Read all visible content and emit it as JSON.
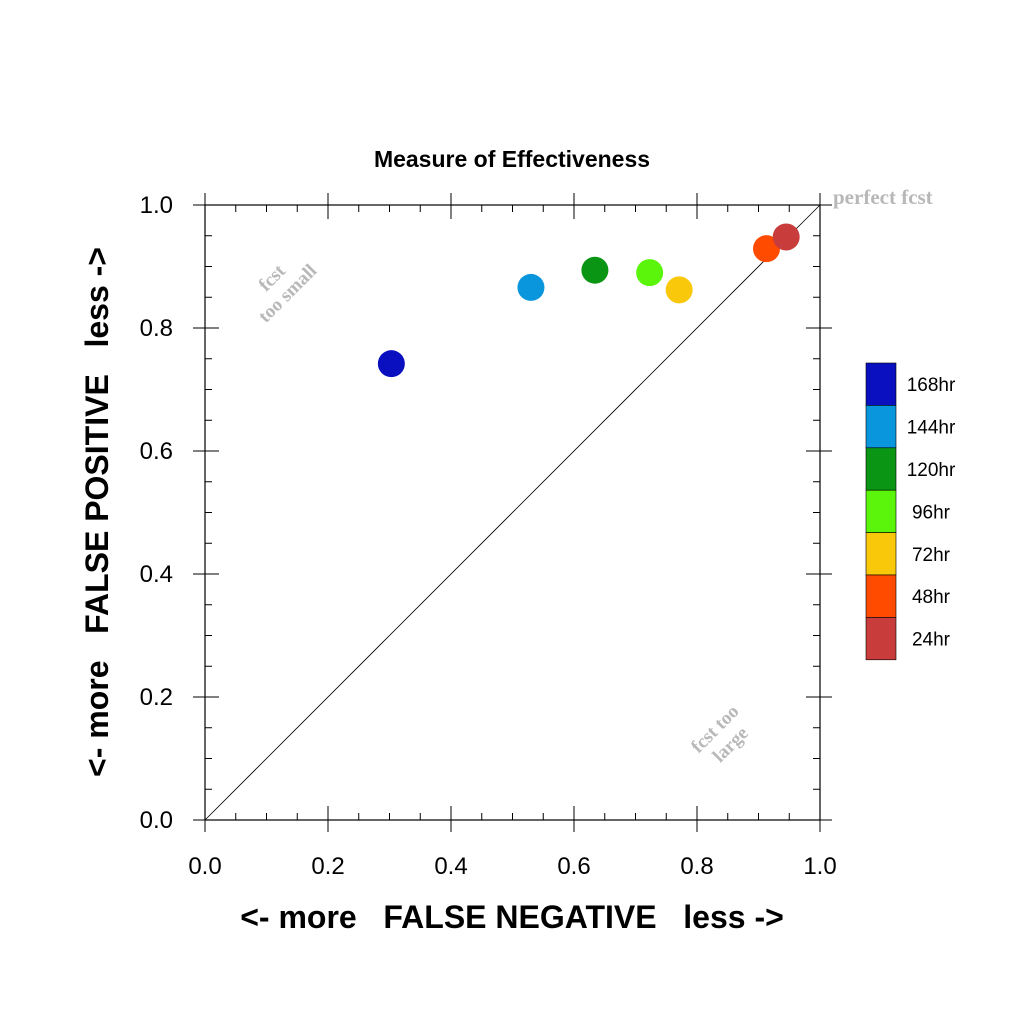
{
  "chart_data": {
    "type": "scatter",
    "title": "Measure of Effectiveness",
    "xlabel": "<- more   FALSE NEGATIVE   less ->",
    "ylabel": "<- more   FALSE POSITIVE   less ->",
    "xlim": [
      0.0,
      1.0
    ],
    "ylim": [
      0.0,
      1.0
    ],
    "xticks": [
      "0.0",
      "0.2",
      "0.4",
      "0.6",
      "0.8",
      "1.0"
    ],
    "yticks": [
      "0.0",
      "0.2",
      "0.4",
      "0.6",
      "0.8",
      "1.0"
    ],
    "grid": false,
    "diagonal_line": true,
    "annotations": {
      "perfect": "perfect fcst",
      "too_small": [
        "fcst",
        "too small"
      ],
      "too_large": [
        "fcst too",
        "large"
      ]
    },
    "legend_position": "right",
    "series": [
      {
        "name": "168hr",
        "color": "#0a10c0",
        "x": 0.303,
        "y": 0.742
      },
      {
        "name": "144hr",
        "color": "#0a96dc",
        "x": 0.53,
        "y": 0.866
      },
      {
        "name": "120hr",
        "color": "#0a9614",
        "x": 0.634,
        "y": 0.894
      },
      {
        "name": "96hr",
        "color": "#5af50a",
        "x": 0.723,
        "y": 0.89
      },
      {
        "name": "72hr",
        "color": "#fac80a",
        "x": 0.771,
        "y": 0.862
      },
      {
        "name": "48hr",
        "color": "#ff4b00",
        "x": 0.913,
        "y": 0.929
      },
      {
        "name": "24hr",
        "color": "#c83c3c",
        "x": 0.945,
        "y": 0.948
      }
    ]
  }
}
